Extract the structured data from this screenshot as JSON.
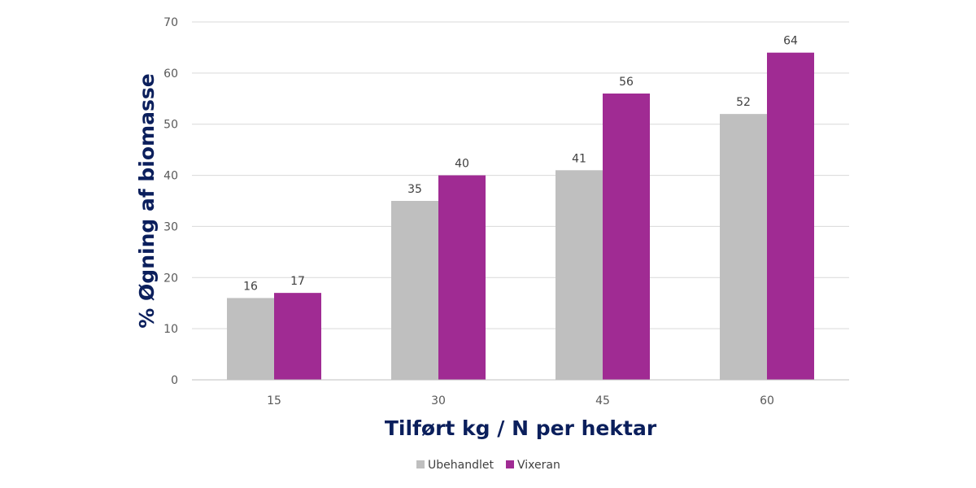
{
  "chart_data": {
    "type": "bar",
    "categories": [
      "15",
      "30",
      "45",
      "60"
    ],
    "series": [
      {
        "name": "Ubehandlet",
        "values": [
          16,
          35,
          41,
          52
        ],
        "labels": [
          "16",
          "35",
          "41",
          "52"
        ],
        "color": "#bfbfbf"
      },
      {
        "name": "Vixeran",
        "values": [
          17,
          40,
          56,
          64
        ],
        "labels": [
          "17",
          "40",
          "56",
          "64"
        ],
        "color": "#a02b93"
      }
    ],
    "xlabel": "Tilført kg / N per hektar",
    "ylabel": "% Øgning af biomasse",
    "ylim": [
      0,
      70
    ],
    "yticks": [
      "0",
      "10",
      "20",
      "30",
      "40",
      "50",
      "60",
      "70"
    ],
    "grid": true,
    "legend": "bottom"
  },
  "colors": {
    "axis_title": "#0b1f5c",
    "gridline": "#d9d9d9"
  }
}
